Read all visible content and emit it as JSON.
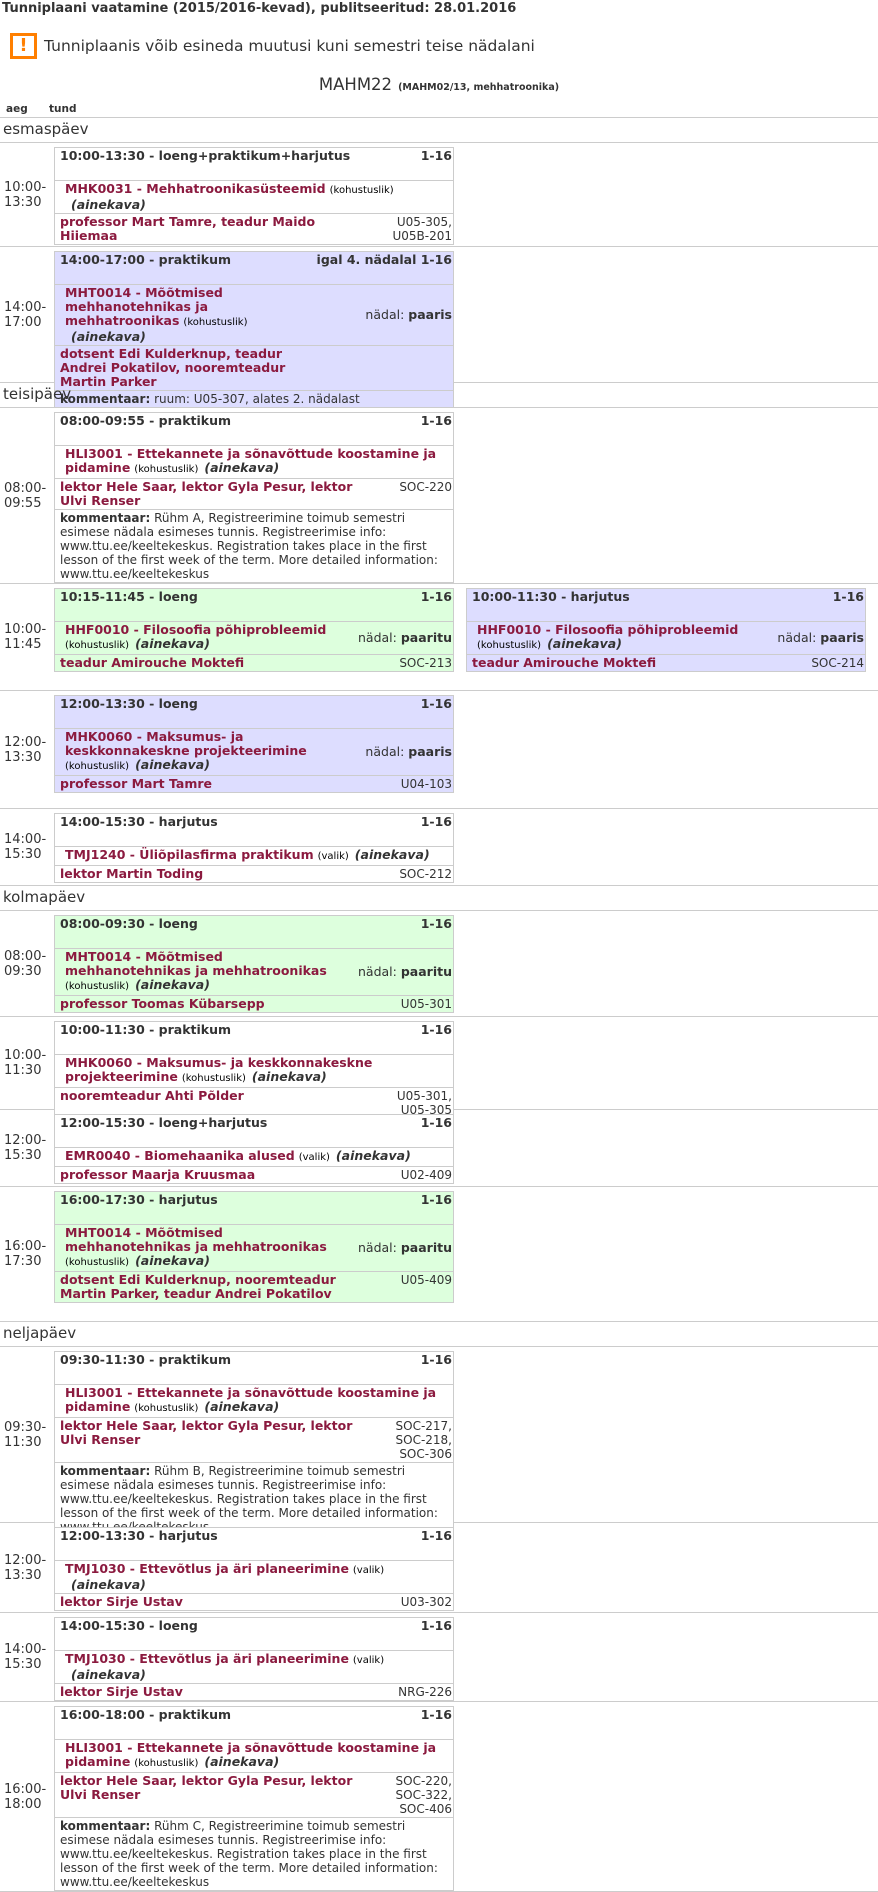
{
  "header": {
    "title": "Tunniplaani vaatamine (2015/2016-kevad), publitseeritud: 28.01.2016",
    "warning": "Tunniplaanis võib esineda muutusi kuni semestri teise nädalani",
    "warning_icon": "!",
    "group": "MAHM22",
    "group_sub": "(MAHM02/13, mehhatroonika)",
    "col_time": "aeg",
    "col_lesson": "tund"
  },
  "labels": {
    "week": "nädal:",
    "comment": "kommentaar:",
    "ainekava": "(ainekava)"
  },
  "colors": {
    "white": "#ffffff",
    "blue": "#ddddff",
    "green": "#ddffdd",
    "link": "#8b1a3f",
    "warning": "#ff7f00"
  },
  "days": [
    {
      "name": "esmaspäev",
      "rows": [
        {
          "time": "10:00- 13:30",
          "h": 104,
          "cards": [
            {
              "color": "white",
              "time": "10:00-13:30 -",
              "type": "loeng+praktikum+harjutus",
              "weeks": "1-16",
              "course": "MHK0031 - Mehhatroonikasüsteemid",
              "status": "(kohustuslik)",
              "teachers": "professor Mart Tamre, teadur Maido Hiiemaa",
              "rooms": "U05-305, U05B-201"
            }
          ]
        },
        {
          "time": "14:00- 17:00",
          "h": 136,
          "cards": [
            {
              "color": "blue",
              "time": "14:00-17:00 -",
              "type": "praktikum",
              "weeks": "igal 4. nädalal 1-16",
              "course": "MHT0014 - Mõõtmised mehhanotehnikas ja mehhatroonikas",
              "status": "(kohustuslik)",
              "parity": "paaris",
              "teachers": "dotsent Edi Kulderknup, teadur Andrei Pokatilov, nooremteadur Martin Parker",
              "rooms": "",
              "comment": "ruum: U05-307, alates 2. nädalast"
            }
          ]
        }
      ]
    },
    {
      "name": "teisipäev",
      "rows": [
        {
          "time": "08:00- 09:55",
          "h": 176,
          "cards": [
            {
              "color": "white",
              "time": "08:00-09:55 -",
              "type": "praktikum",
              "weeks": "1-16",
              "course": "HLI3001 - Ettekannete ja sõnavõttude koostamine ja pidamine",
              "status": "(kohustuslik)",
              "teachers": "lektor Hele Saar, lektor Gyla Pesur, lektor Ulvi Renser",
              "rooms": "SOC-220",
              "comment": "Rühm A, Registreerimine toimub semestri esimese nädala esimeses tunnis. Registreerimise info: www.ttu.ee/keeltekeskus. Registration takes place in the first lesson of the first week of the term. More detailed information: www.ttu.ee/keeltekeskus"
            }
          ]
        },
        {
          "time": "10:00- 11:45",
          "h": 107,
          "cards": [
            {
              "color": "green",
              "time": "10:15-11:45 -",
              "type": "loeng",
              "weeks": "1-16",
              "course": "HHF0010 - Filosoofia põhiprobleemid",
              "status": "(kohustuslik)",
              "parity": "paaritu",
              "teachers": "teadur Amirouche Moktefi",
              "rooms": "SOC-213"
            },
            {
              "color": "blue",
              "time": "10:00-11:30 -",
              "type": "harjutus",
              "weeks": "1-16",
              "course": "HHF0010 - Filosoofia põhiprobleemid",
              "status": "(kohustuslik)",
              "parity": "paaris",
              "teachers": "teadur Amirouche Moktefi",
              "rooms": "SOC-214"
            }
          ]
        },
        {
          "time": "12:00- 13:30",
          "h": 118,
          "cards": [
            {
              "color": "blue",
              "time": "12:00-13:30 -",
              "type": "loeng",
              "weeks": "1-16",
              "course": "MHK0060 - Maksumus- ja keskkonnakeskne projekteerimine",
              "status": "(kohustuslik)",
              "parity": "paaris",
              "teachers": "professor Mart Tamre",
              "rooms": "U04-103"
            }
          ]
        },
        {
          "time": "14:00- 15:30",
          "h": 77,
          "cards": [
            {
              "color": "white",
              "time": "14:00-15:30 -",
              "type": "harjutus",
              "weeks": "1-16",
              "course": "TMJ1240 - Üliõpilasfirma praktikum",
              "status": "(valik)",
              "teachers": "lektor Martin Toding",
              "rooms": "SOC-212"
            }
          ]
        }
      ]
    },
    {
      "name": "kolmapäev",
      "rows": [
        {
          "time": "08:00- 09:30",
          "h": 106,
          "cards": [
            {
              "color": "green",
              "time": "08:00-09:30 -",
              "type": "loeng",
              "weeks": "1-16",
              "course": "MHT0014 - Mõõtmised mehhanotehnikas ja mehhatroonikas",
              "status": "(kohustuslik)",
              "parity": "paaritu",
              "teachers": "professor Toomas Kübarsepp",
              "rooms": "U05-301"
            }
          ]
        },
        {
          "time": "10:00- 11:30",
          "h": 93,
          "cards": [
            {
              "color": "white",
              "time": "10:00-11:30 -",
              "type": "praktikum",
              "weeks": "1-16",
              "course": "MHK0060 - Maksumus- ja keskkonnakeskne projekteerimine",
              "status": "(kohustuslik)",
              "teachers": "nooremteadur Ahti Põlder",
              "rooms": "U05-301, U05-305"
            }
          ]
        },
        {
          "time": "12:00- 15:30",
          "h": 77,
          "cards": [
            {
              "color": "white",
              "time": "12:00-15:30 -",
              "type": "loeng+harjutus",
              "weeks": "1-16",
              "course": "EMR0040 - Biomehaanika alused",
              "status": "(valik)",
              "teachers": "professor Maarja Kruusmaa",
              "rooms": "U02-409"
            }
          ]
        },
        {
          "time": "16:00- 17:30",
          "h": 135,
          "cards": [
            {
              "color": "green",
              "time": "16:00-17:30 -",
              "type": "harjutus",
              "weeks": "1-16",
              "course": "MHT0014 - Mõõtmised mehhanotehnikas ja mehhatroonikas",
              "status": "(kohustuslik)",
              "parity": "paaritu",
              "teachers": "dotsent Edi Kulderknup, nooremteadur Martin Parker, teadur Andrei Pokatilov",
              "rooms": "U05-409"
            }
          ]
        }
      ]
    },
    {
      "name": "neljapäev",
      "rows": [
        {
          "time": "09:30- 11:30",
          "h": 176,
          "cards": [
            {
              "color": "white",
              "time": "09:30-11:30 -",
              "type": "praktikum",
              "weeks": "1-16",
              "course": "HLI3001 - Ettekannete ja sõnavõttude koostamine ja pidamine",
              "status": "(kohustuslik)",
              "teachers": "lektor Hele Saar, lektor Gyla Pesur, lektor Ulvi Renser",
              "rooms": "SOC-217, SOC-218, SOC-306",
              "comment": "Rühm B, Registreerimine toimub semestri esimese nädala esimeses tunnis. Registreerimise info: www.ttu.ee/keeltekeskus. Registration takes place in the first lesson of the first week of the term. More detailed information: www.ttu.ee/keeltekeskus"
            }
          ]
        },
        {
          "time": "12:00- 13:30",
          "h": 90,
          "cards": [
            {
              "color": "white",
              "time": "12:00-13:30 -",
              "type": "harjutus",
              "weeks": "1-16",
              "course": "TMJ1030 - Ettevõtlus ja äri planeerimine",
              "status": "(valik)",
              "teachers": "lektor Sirje Ustav",
              "rooms": "U03-302"
            }
          ]
        },
        {
          "time": "14:00- 15:30",
          "h": 89,
          "cards": [
            {
              "color": "white",
              "time": "14:00-15:30 -",
              "type": "loeng",
              "weeks": "1-16",
              "course": "TMJ1030 - Ettevõtlus ja äri planeerimine",
              "status": "(valik)",
              "teachers": "lektor Sirje Ustav",
              "rooms": "NRG-226"
            }
          ]
        },
        {
          "time": "16:00- 18:00",
          "h": 190,
          "cards": [
            {
              "color": "white",
              "time": "16:00-18:00 -",
              "type": "praktikum",
              "weeks": "1-16",
              "course": "HLI3001 - Ettekannete ja sõnavõttude koostamine ja pidamine",
              "status": "(kohustuslik)",
              "teachers": "lektor Hele Saar, lektor Gyla Pesur, lektor Ulvi Renser",
              "rooms": "SOC-220, SOC-322, SOC-406",
              "comment": "Rühm C, Registreerimine toimub semestri esimese nädala esimeses tunnis. Registreerimise info: www.ttu.ee/keeltekeskus. Registration takes place in the first lesson of the first week of the term. More detailed information: www.ttu.ee/keeltekeskus"
            }
          ]
        }
      ]
    }
  ]
}
